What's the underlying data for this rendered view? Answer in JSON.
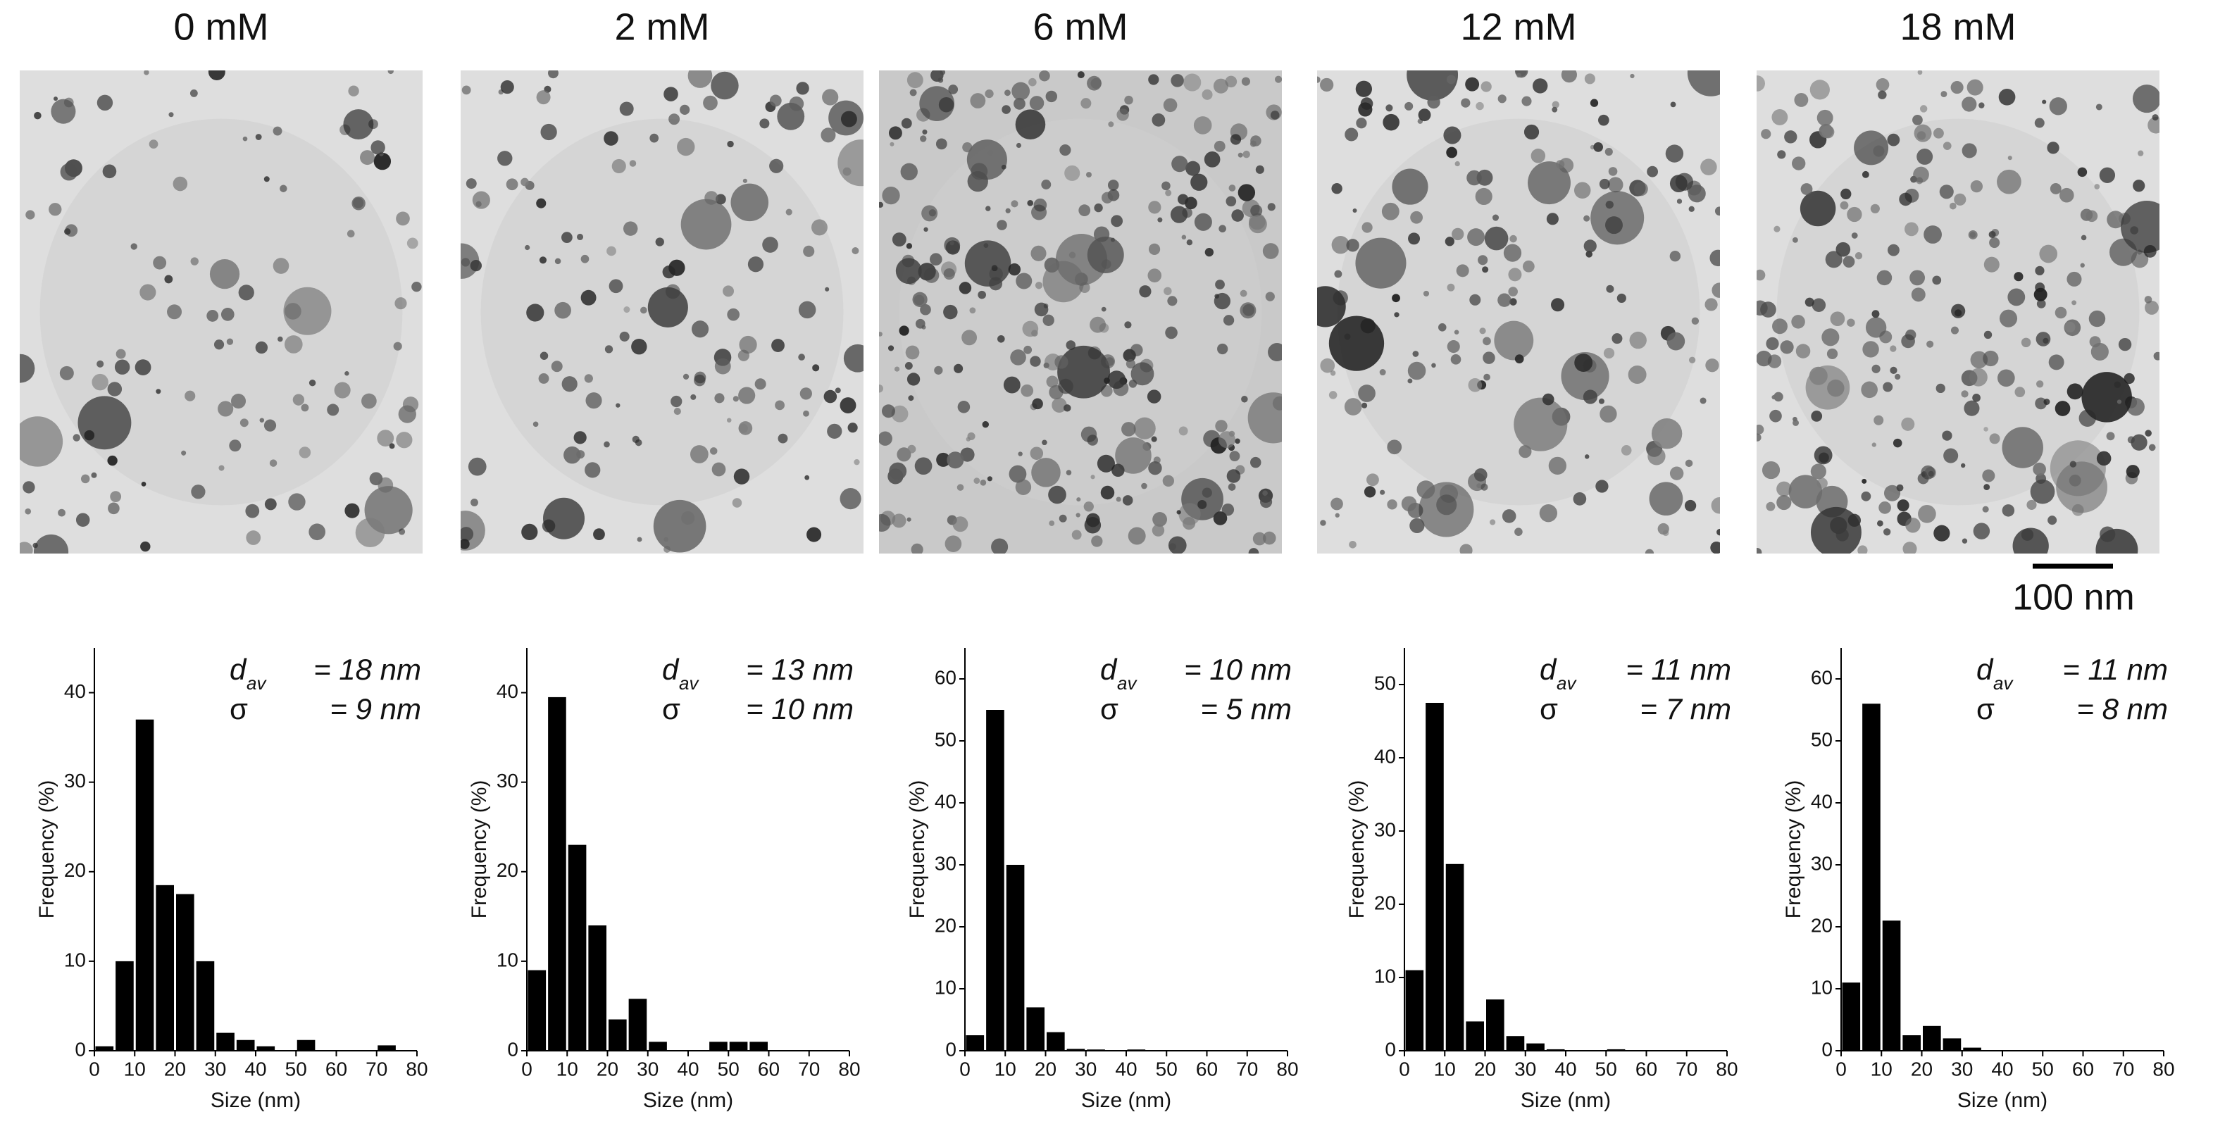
{
  "scale_bar": "100 nm",
  "chart_data": [
    {
      "type": "histogram",
      "title": "0 mM",
      "x_label": "Size (nm)",
      "y_label": "Frequency (%)",
      "bins": [
        0,
        5,
        10,
        15,
        20,
        25,
        30,
        35,
        40,
        45,
        50,
        55,
        60,
        65,
        70,
        75,
        80
      ],
      "values": [
        0.5,
        10,
        37,
        18.5,
        17.5,
        10,
        2,
        1.2,
        0.5,
        0,
        1.2,
        0,
        0,
        0,
        0.6,
        0
      ],
      "color": "#000000",
      "xlim": [
        0,
        80
      ],
      "xticks": [
        0,
        10,
        20,
        30,
        40,
        50,
        60,
        70,
        80
      ],
      "ylim": [
        0,
        45
      ],
      "yticks": [
        0,
        10,
        20,
        30,
        40
      ],
      "d_symbol": "d",
      "d_subscript": "av",
      "d_value": "= 18 nm",
      "sigma_symbol": "σ",
      "sigma_value": "=   9 nm"
    },
    {
      "type": "histogram",
      "title": "2 mM",
      "x_label": "Size (nm)",
      "y_label": "Frequency (%)",
      "bins": [
        0,
        5,
        10,
        15,
        20,
        25,
        30,
        35,
        40,
        45,
        50,
        55,
        60,
        65,
        70,
        75,
        80
      ],
      "values": [
        9,
        39.5,
        23,
        14,
        3.5,
        5.8,
        1,
        0,
        0,
        1,
        1,
        1,
        0,
        0,
        0,
        0
      ],
      "color": "#000000",
      "xlim": [
        0,
        80
      ],
      "xticks": [
        0,
        10,
        20,
        30,
        40,
        50,
        60,
        70,
        80
      ],
      "ylim": [
        0,
        45
      ],
      "yticks": [
        0,
        10,
        20,
        30,
        40
      ],
      "d_symbol": "d",
      "d_subscript": "av",
      "d_value": "= 13 nm",
      "sigma_symbol": "σ",
      "sigma_value": "= 10 nm"
    },
    {
      "type": "histogram",
      "title": "6 mM",
      "x_label": "Size (nm)",
      "y_label": "Frequency (%)",
      "bins": [
        0,
        5,
        10,
        15,
        20,
        25,
        30,
        35,
        40,
        45,
        50,
        55,
        60,
        65,
        70,
        75,
        80
      ],
      "values": [
        2.5,
        55,
        30,
        7,
        3,
        0.3,
        0.2,
        0,
        0.2,
        0,
        0,
        0,
        0,
        0,
        0,
        0
      ],
      "color": "#000000",
      "xlim": [
        0,
        80
      ],
      "xticks": [
        0,
        10,
        20,
        30,
        40,
        50,
        60,
        70,
        80
      ],
      "ylim": [
        0,
        65
      ],
      "yticks": [
        0,
        10,
        20,
        30,
        40,
        50,
        60
      ],
      "d_symbol": "d",
      "d_subscript": "av",
      "d_value": "= 10 nm",
      "sigma_symbol": "σ",
      "sigma_value": "=   5 nm"
    },
    {
      "type": "histogram",
      "title": "12 mM",
      "x_label": "Size (nm)",
      "y_label": "Frequency (%)",
      "bins": [
        0,
        5,
        10,
        15,
        20,
        25,
        30,
        35,
        40,
        45,
        50,
        55,
        60,
        65,
        70,
        75,
        80
      ],
      "values": [
        11,
        47.5,
        25.5,
        4,
        7,
        2,
        1,
        0.2,
        0,
        0,
        0.2,
        0,
        0,
        0,
        0,
        0
      ],
      "color": "#000000",
      "xlim": [
        0,
        80
      ],
      "xticks": [
        0,
        10,
        20,
        30,
        40,
        50,
        60,
        70,
        80
      ],
      "ylim": [
        0,
        55
      ],
      "yticks": [
        0,
        10,
        20,
        30,
        40,
        50
      ],
      "d_symbol": "d",
      "d_subscript": "av",
      "d_value": "= 11 nm",
      "sigma_symbol": "σ",
      "sigma_value": "=   7 nm"
    },
    {
      "type": "histogram",
      "title": "18 mM",
      "x_label": "Size (nm)",
      "y_label": "Frequency (%)",
      "bins": [
        0,
        5,
        10,
        15,
        20,
        25,
        30,
        35,
        40,
        45,
        50,
        55,
        60,
        65,
        70,
        75,
        80
      ],
      "values": [
        11,
        56,
        21,
        2.5,
        4,
        2,
        0.5,
        0.1,
        0,
        0,
        0,
        0,
        0,
        0,
        0,
        0
      ],
      "color": "#000000",
      "xlim": [
        0,
        80
      ],
      "xticks": [
        0,
        10,
        20,
        30,
        40,
        50,
        60,
        70,
        80
      ],
      "ylim": [
        0,
        65
      ],
      "yticks": [
        0,
        10,
        20,
        30,
        40,
        50,
        60
      ],
      "d_symbol": "d",
      "d_subscript": "av",
      "d_value": "= 11 nm",
      "sigma_symbol": "σ",
      "sigma_value": "=   8 nm"
    }
  ]
}
